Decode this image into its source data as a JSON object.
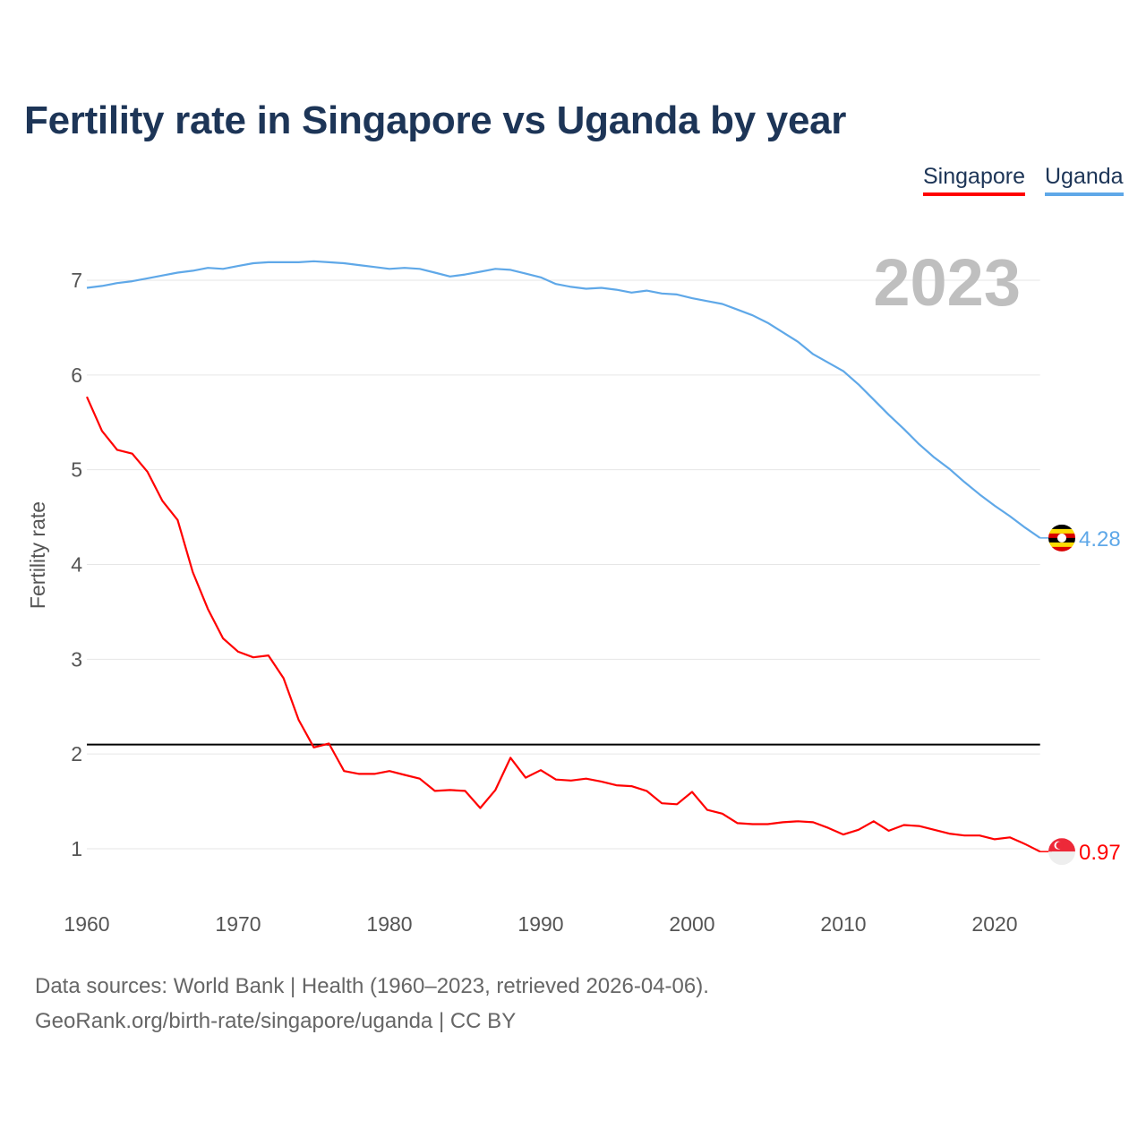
{
  "title": "Fertility rate in Singapore vs Uganda by year",
  "footer": {
    "source": "Data sources: World Bank | Health (1960–2023, retrieved 2026-04-06).",
    "attribution": "GeoRank.org/birth-rate/singapore/uganda | CC BY"
  },
  "chart_data": {
    "type": "line",
    "title": "Fertility rate in Singapore vs Uganda by year",
    "xlabel": "",
    "ylabel": "Fertility rate",
    "year_label": "2023",
    "xlim": [
      1960,
      2023
    ],
    "ylim": [
      0.4,
      7.5
    ],
    "x_ticks": [
      1960,
      1970,
      1980,
      1990,
      2000,
      2010,
      2020
    ],
    "y_ticks": [
      1,
      2,
      3,
      4,
      5,
      6,
      7
    ],
    "grid": true,
    "legend_position": "top-right",
    "reference_line": 2.1,
    "x": [
      1960,
      1961,
      1962,
      1963,
      1964,
      1965,
      1966,
      1967,
      1968,
      1969,
      1970,
      1971,
      1972,
      1973,
      1974,
      1975,
      1976,
      1977,
      1978,
      1979,
      1980,
      1981,
      1982,
      1983,
      1984,
      1985,
      1986,
      1987,
      1988,
      1989,
      1990,
      1991,
      1992,
      1993,
      1994,
      1995,
      1996,
      1997,
      1998,
      1999,
      2000,
      2001,
      2002,
      2003,
      2004,
      2005,
      2006,
      2007,
      2008,
      2009,
      2010,
      2011,
      2012,
      2013,
      2014,
      2015,
      2016,
      2017,
      2018,
      2019,
      2020,
      2021,
      2022,
      2023
    ],
    "series": [
      {
        "name": "Singapore",
        "color": "#ff0000",
        "end_label": "0.97",
        "flag": "singapore-flag",
        "values": [
          5.77,
          5.41,
          5.21,
          5.17,
          4.98,
          4.67,
          4.47,
          3.92,
          3.53,
          3.22,
          3.08,
          3.02,
          3.04,
          2.8,
          2.36,
          2.07,
          2.11,
          1.82,
          1.79,
          1.79,
          1.82,
          1.78,
          1.74,
          1.61,
          1.62,
          1.61,
          1.43,
          1.62,
          1.96,
          1.75,
          1.83,
          1.73,
          1.72,
          1.74,
          1.71,
          1.67,
          1.66,
          1.61,
          1.48,
          1.47,
          1.6,
          1.41,
          1.37,
          1.27,
          1.26,
          1.26,
          1.28,
          1.29,
          1.28,
          1.22,
          1.15,
          1.2,
          1.29,
          1.19,
          1.25,
          1.24,
          1.2,
          1.16,
          1.14,
          1.14,
          1.1,
          1.12,
          1.05,
          0.97
        ]
      },
      {
        "name": "Uganda",
        "color": "#5fa8e8",
        "end_label": "4.28",
        "flag": "uganda-flag",
        "values": [
          6.92,
          6.94,
          6.97,
          6.99,
          7.02,
          7.05,
          7.08,
          7.1,
          7.13,
          7.12,
          7.15,
          7.18,
          7.19,
          7.19,
          7.19,
          7.2,
          7.19,
          7.18,
          7.16,
          7.14,
          7.12,
          7.13,
          7.12,
          7.08,
          7.04,
          7.06,
          7.09,
          7.12,
          7.11,
          7.07,
          7.03,
          6.96,
          6.93,
          6.91,
          6.92,
          6.9,
          6.87,
          6.89,
          6.86,
          6.85,
          6.81,
          6.78,
          6.75,
          6.69,
          6.63,
          6.55,
          6.45,
          6.35,
          6.22,
          6.13,
          6.04,
          5.9,
          5.74,
          5.58,
          5.43,
          5.27,
          5.13,
          5.01,
          4.87,
          4.74,
          4.62,
          4.51,
          4.39,
          4.28
        ]
      }
    ]
  }
}
